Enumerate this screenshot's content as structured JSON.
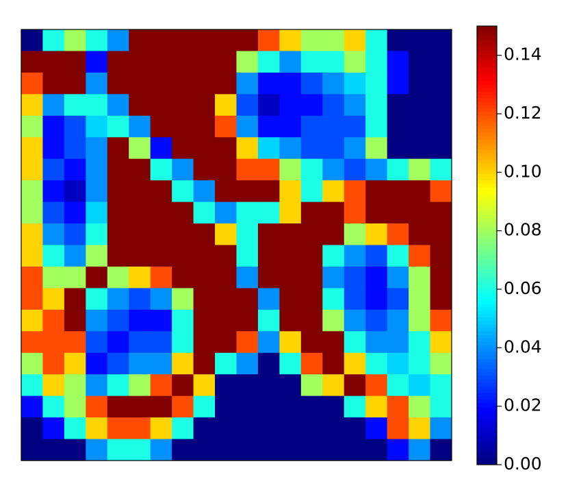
{
  "chart_data": {
    "type": "heatmap",
    "colormap": "jet",
    "clim": [
      0,
      0.15
    ],
    "cticks": [
      {
        "value": 0,
        "label": "0.00"
      },
      {
        "value": 0.02,
        "label": "0.02"
      },
      {
        "value": 0.04,
        "label": "0.04"
      },
      {
        "value": 0.06,
        "label": "0.06"
      },
      {
        "value": 0.08,
        "label": "0.08"
      },
      {
        "value": 0.1,
        "label": "0.10"
      },
      {
        "value": 0.12,
        "label": "0.12"
      },
      {
        "value": 0.14,
        "label": "0.14"
      }
    ],
    "z": [
      [
        0,
        0.06,
        0.08,
        0.06,
        0.04,
        0.15,
        0.15,
        0.15,
        0.15,
        0.15,
        0.15,
        0.12,
        0.1,
        0.08,
        0.08,
        0.1,
        0.06,
        0,
        0,
        0
      ],
      [
        0.15,
        0.15,
        0.15,
        0.02,
        0.15,
        0.15,
        0.15,
        0.15,
        0.15,
        0.15,
        0.08,
        0.06,
        0.04,
        0.06,
        0.06,
        0.08,
        0.06,
        0.02,
        0,
        0
      ],
      [
        0.12,
        0.15,
        0.15,
        0.04,
        0.15,
        0.15,
        0.15,
        0.15,
        0.15,
        0.15,
        0.04,
        0.02,
        0.02,
        0.03,
        0.04,
        0.05,
        0.06,
        0.02,
        0,
        0
      ],
      [
        0.1,
        0.04,
        0.06,
        0.06,
        0.04,
        0.15,
        0.15,
        0.15,
        0.15,
        0.1,
        0.03,
        0.01,
        0.02,
        0.02,
        0.03,
        0.04,
        0.06,
        0,
        0,
        0
      ],
      [
        0.08,
        0.02,
        0.03,
        0.05,
        0.06,
        0.04,
        0.15,
        0.15,
        0.15,
        0.12,
        0.04,
        0.02,
        0.02,
        0.03,
        0.03,
        0.03,
        0.06,
        0,
        0,
        0
      ],
      [
        0.1,
        0.02,
        0.03,
        0.04,
        0.15,
        0.08,
        0.02,
        0.15,
        0.15,
        0.15,
        0.1,
        0.05,
        0.04,
        0.03,
        0.03,
        0.04,
        0.08,
        0,
        0,
        0
      ],
      [
        0.1,
        0.03,
        0.02,
        0.04,
        0.15,
        0.15,
        0.06,
        0.04,
        0.15,
        0.15,
        0.12,
        0.12,
        0.08,
        0.06,
        0.04,
        0.03,
        0.04,
        0.06,
        0.08,
        0.06
      ],
      [
        0.08,
        0.02,
        0.01,
        0.04,
        0.15,
        0.15,
        0.15,
        0.06,
        0.04,
        0.15,
        0.15,
        0.15,
        0.1,
        0.06,
        0.1,
        0.12,
        0.15,
        0.15,
        0.15,
        0.12
      ],
      [
        0.08,
        0.03,
        0.02,
        0.05,
        0.15,
        0.15,
        0.15,
        0.15,
        0.06,
        0.04,
        0.06,
        0.06,
        0.1,
        0.15,
        0.15,
        0.12,
        0.15,
        0.15,
        0.15,
        0.15
      ],
      [
        0.1,
        0.04,
        0.03,
        0.06,
        0.15,
        0.15,
        0.15,
        0.15,
        0.15,
        0.1,
        0.06,
        0.15,
        0.15,
        0.15,
        0.15,
        0.08,
        0.1,
        0.12,
        0.15,
        0.15
      ],
      [
        0.1,
        0.06,
        0.04,
        0.08,
        0.15,
        0.15,
        0.15,
        0.15,
        0.15,
        0.15,
        0.06,
        0.15,
        0.15,
        0.15,
        0.06,
        0.04,
        0.03,
        0.06,
        0.12,
        0.15
      ],
      [
        0.12,
        0.08,
        0.08,
        0.15,
        0.08,
        0.1,
        0.12,
        0.15,
        0.15,
        0.15,
        0.04,
        0.15,
        0.15,
        0.15,
        0.04,
        0.03,
        0.02,
        0.04,
        0.08,
        0.15
      ],
      [
        0.12,
        0.1,
        0.15,
        0.06,
        0.04,
        0.03,
        0.04,
        0.08,
        0.15,
        0.15,
        0.15,
        0.04,
        0.15,
        0.15,
        0.06,
        0.03,
        0.02,
        0.03,
        0.08,
        0.15
      ],
      [
        0.1,
        0.12,
        0.15,
        0.04,
        0.03,
        0.02,
        0.02,
        0.06,
        0.15,
        0.15,
        0.15,
        0.06,
        0.15,
        0.15,
        0.08,
        0.04,
        0.03,
        0.04,
        0.08,
        0.12
      ],
      [
        0.12,
        0.12,
        0.12,
        0.03,
        0.02,
        0.03,
        0.03,
        0.06,
        0.15,
        0.15,
        0.12,
        0.04,
        0.1,
        0.15,
        0.15,
        0.06,
        0.04,
        0.04,
        0.06,
        0.1
      ],
      [
        0.08,
        0.12,
        0.1,
        0.02,
        0.03,
        0.04,
        0.04,
        0.1,
        0.15,
        0.06,
        0.04,
        0,
        0.06,
        0.12,
        0.15,
        0.1,
        0.06,
        0.05,
        0.06,
        0.08
      ],
      [
        0.06,
        0.1,
        0.08,
        0.04,
        0.06,
        0.08,
        0.12,
        0.15,
        0.1,
        0,
        0,
        0,
        0,
        0.08,
        0.1,
        0.15,
        0.12,
        0.06,
        0.05,
        0.06
      ],
      [
        0.02,
        0.06,
        0.08,
        0.12,
        0.15,
        0.15,
        0.15,
        0.12,
        0.06,
        0,
        0,
        0,
        0,
        0,
        0,
        0.06,
        0.1,
        0.12,
        0.08,
        0.06
      ],
      [
        0,
        0.02,
        0.06,
        0.1,
        0.12,
        0.12,
        0.1,
        0.06,
        0,
        0,
        0,
        0,
        0,
        0,
        0,
        0,
        0.02,
        0.12,
        0.1,
        0.04
      ],
      [
        0,
        0,
        0,
        0.04,
        0.06,
        0.06,
        0.04,
        0,
        0,
        0,
        0,
        0,
        0,
        0,
        0,
        0,
        0,
        0.02,
        0.04,
        0
      ]
    ]
  }
}
